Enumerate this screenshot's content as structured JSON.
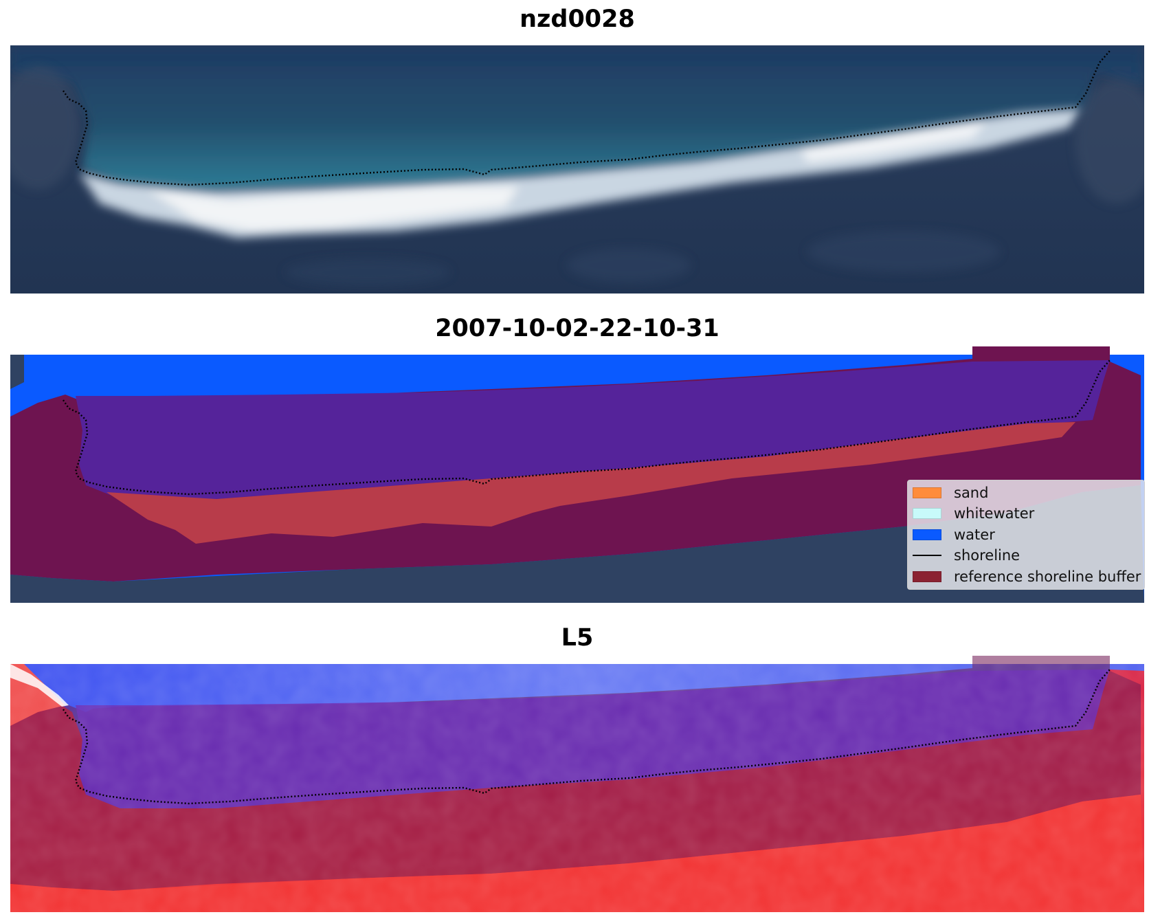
{
  "panels": [
    {
      "title": "nzd0028"
    },
    {
      "title": "2007-10-02-22-10-31"
    },
    {
      "title": "L5"
    }
  ],
  "legend": {
    "items": [
      {
        "label": "sand",
        "color": "#ff8c3c"
      },
      {
        "label": "whitewater",
        "color": "#c8fafa"
      },
      {
        "label": "water",
        "color": "#0a5aff"
      },
      {
        "label": "shoreline",
        "color": "#000000"
      },
      {
        "label": "reference shoreline buffer",
        "color": "#8b2232"
      }
    ]
  },
  "colors": {
    "rgb_sea_deep": "#1f3c64",
    "rgb_sea_shallow": "#2e7c96",
    "rgb_land": "#283a5a",
    "rgb_surf": "#e6ecf2",
    "class_water": "#0a5aff",
    "class_sand_buffered": "#b83c4a",
    "buffer_overlay": "#6e1450",
    "water_in_buffer": "#55239a",
    "mndwi_water": "#5a6cf0",
    "mndwi_land": "#e8283c"
  }
}
